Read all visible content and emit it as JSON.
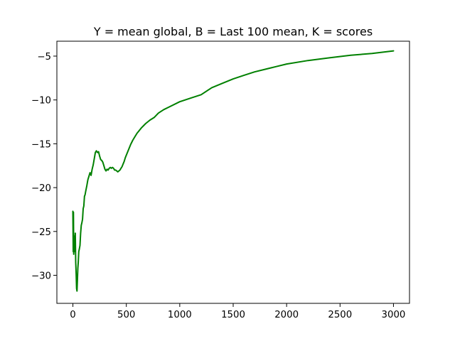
{
  "chart_data": {
    "type": "line",
    "title": "Y = mean global, B = Last 100 mean, K = scores",
    "xlabel": "",
    "ylabel": "",
    "xlim": [
      -150,
      3150
    ],
    "ylim": [
      -33.2,
      -3.3
    ],
    "xticks": [
      0,
      500,
      1000,
      1500,
      2000,
      2500,
      3000
    ],
    "xtick_labels": [
      "0",
      "500",
      "1000",
      "1500",
      "2000",
      "2500",
      "3000"
    ],
    "yticks": [
      -30,
      -25,
      -20,
      -15,
      -10,
      -5
    ],
    "ytick_labels": [
      "−30",
      "−25",
      "−20",
      "−15",
      "−10",
      "−5"
    ],
    "grid": false,
    "series": [
      {
        "color": "#008000",
        "x": [
          0,
          3,
          5,
          8,
          10,
          14,
          18,
          22,
          26,
          30,
          34,
          38,
          42,
          46,
          50,
          55,
          60,
          66,
          72,
          78,
          84,
          90,
          96,
          102,
          108,
          114,
          120,
          130,
          140,
          150,
          160,
          170,
          180,
          190,
          200,
          210,
          220,
          230,
          240,
          250,
          260,
          270,
          280,
          290,
          300,
          310,
          320,
          330,
          340,
          350,
          360,
          370,
          380,
          390,
          400,
          410,
          420,
          430,
          440,
          450,
          460,
          470,
          480,
          490,
          500,
          520,
          540,
          560,
          580,
          600,
          640,
          680,
          720,
          760,
          800,
          850,
          900,
          1000,
          1100,
          1200,
          1300,
          1400,
          1500,
          1600,
          1700,
          1800,
          1900,
          2000,
          2200,
          2400,
          2600,
          2800,
          3000
        ],
        "y": [
          -22.7,
          -27.3,
          -22.8,
          -27.6,
          -25.5,
          -27.3,
          -27.0,
          -25.2,
          -28.5,
          -29.8,
          -31.5,
          -31.8,
          -30.5,
          -29.2,
          -28.5,
          -27.3,
          -27.0,
          -26.6,
          -25.2,
          -24.3,
          -24.0,
          -23.6,
          -22.4,
          -22.1,
          -21.0,
          -20.8,
          -20.4,
          -19.8,
          -19.1,
          -18.7,
          -18.3,
          -18.6,
          -17.9,
          -17.4,
          -16.7,
          -16.0,
          -15.8,
          -16.0,
          -15.9,
          -16.4,
          -16.8,
          -16.9,
          -17.1,
          -17.5,
          -17.9,
          -18.1,
          -17.9,
          -18.0,
          -17.8,
          -17.7,
          -17.8,
          -17.7,
          -17.8,
          -18.0,
          -18.0,
          -18.1,
          -18.2,
          -18.1,
          -18.0,
          -17.8,
          -17.6,
          -17.3,
          -17.0,
          -16.6,
          -16.3,
          -15.7,
          -15.1,
          -14.6,
          -14.2,
          -13.8,
          -13.2,
          -12.7,
          -12.3,
          -12.0,
          -11.5,
          -11.1,
          -10.8,
          -10.2,
          -9.8,
          -9.4,
          -8.6,
          -8.1,
          -7.6,
          -7.2,
          -6.8,
          -6.5,
          -6.2,
          -5.9,
          -5.5,
          -5.2,
          -4.9,
          -4.7,
          -4.4
        ]
      }
    ]
  }
}
